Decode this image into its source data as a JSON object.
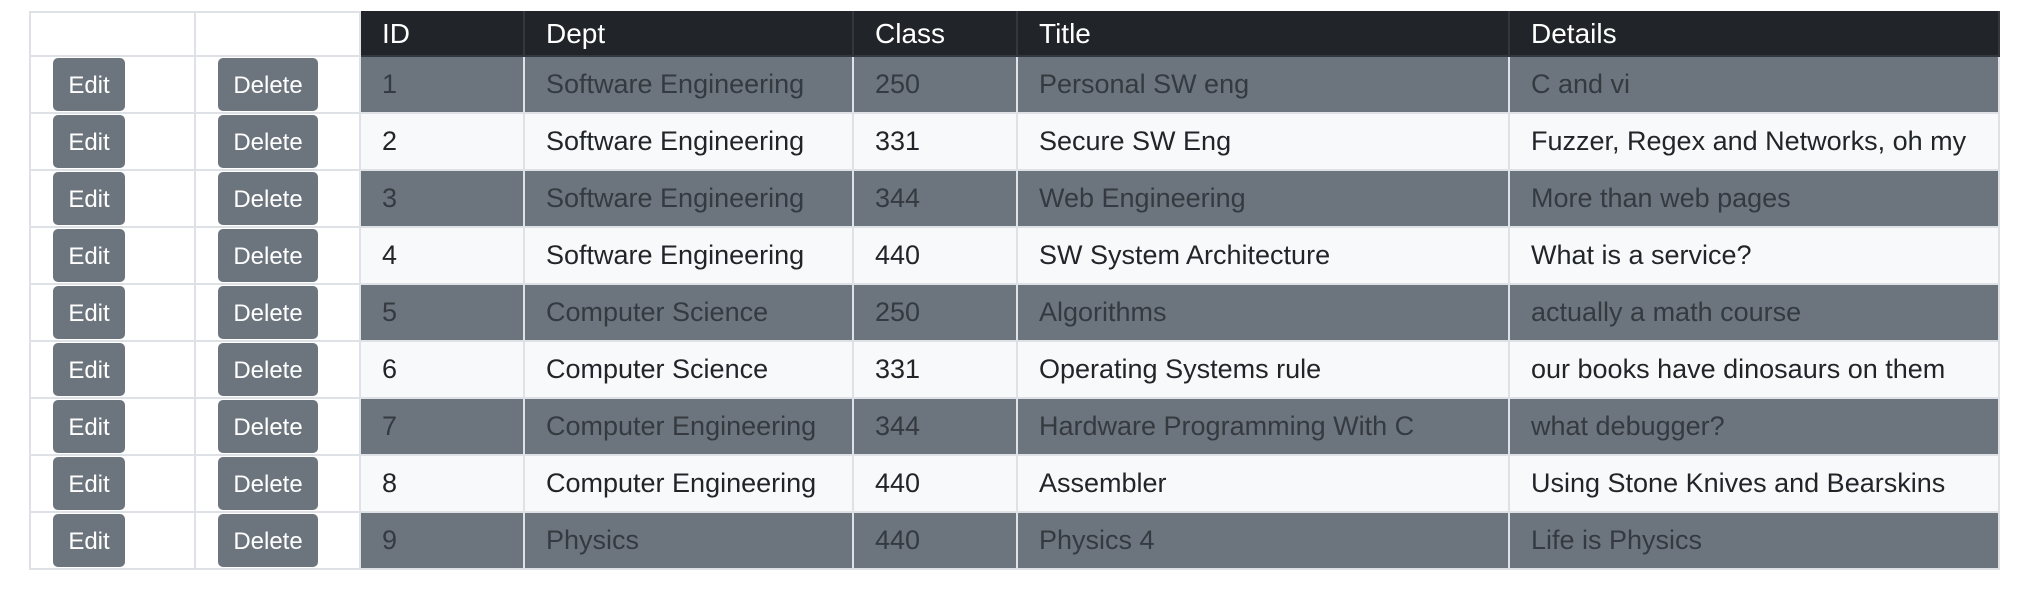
{
  "table": {
    "headers": {
      "id": "ID",
      "dept": "Dept",
      "class": "Class",
      "title": "Title",
      "details": "Details"
    },
    "buttons": {
      "edit_label": "Edit",
      "delete_label": "Delete"
    },
    "rows": [
      {
        "id": "1",
        "dept": "Software Engineering",
        "class": "250",
        "title": "Personal SW eng",
        "details": "C and vi"
      },
      {
        "id": "2",
        "dept": "Software Engineering",
        "class": "331",
        "title": "Secure SW Eng",
        "details": "Fuzzer, Regex and Networks, oh my"
      },
      {
        "id": "3",
        "dept": "Software Engineering",
        "class": "344",
        "title": "Web Engineering",
        "details": "More than web pages"
      },
      {
        "id": "4",
        "dept": "Software Engineering",
        "class": "440",
        "title": "SW System Architecture",
        "details": "What is a service?"
      },
      {
        "id": "5",
        "dept": "Computer Science",
        "class": "250",
        "title": "Algorithms",
        "details": "actually a math course"
      },
      {
        "id": "6",
        "dept": "Computer Science",
        "class": "331",
        "title": "Operating Systems rule",
        "details": "our books have dinosaurs on them"
      },
      {
        "id": "7",
        "dept": "Computer Engineering",
        "class": "344",
        "title": "Hardware Programming With C",
        "details": "what debugger?"
      },
      {
        "id": "8",
        "dept": "Computer Engineering",
        "class": "440",
        "title": "Assembler",
        "details": "Using Stone Knives and Bearskins"
      },
      {
        "id": "9",
        "dept": "Physics",
        "class": "440",
        "title": "Physics 4",
        "details": "Life is Physics"
      }
    ]
  },
  "colors": {
    "header_bg": "#212529",
    "dark_row_bg": "#6c757d",
    "light_row_bg": "#f8f9fa",
    "button_bg": "#6c757d"
  }
}
